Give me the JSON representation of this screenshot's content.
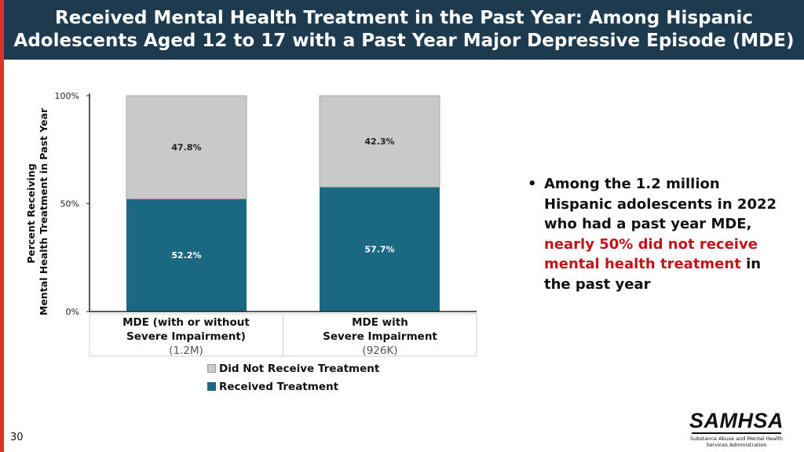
{
  "header": {
    "title_line1": "Received Mental Health Treatment in the Past Year: Among Hispanic",
    "title_line2": "Adolescents Aged 12 to 17 with a Past Year Major Depressive Episode (MDE)"
  },
  "colors": {
    "header_bg": "#1d3a4f",
    "accent_stripe": "#d9332b",
    "did_not_receive": "#c9c9c9",
    "received": "#1b6882",
    "highlight": "#c0151d"
  },
  "y_axis_title": {
    "line1": "Percent Receiving",
    "line2": "Mental Health Treatment in Past Year"
  },
  "categories": [
    {
      "line1": "MDE (with or without",
      "line2": "Severe Impairment)",
      "count": "(1.2M)"
    },
    {
      "line1": "MDE with",
      "line2": "Severe Impairment",
      "count": "(926K)"
    }
  ],
  "chart_data": {
    "type": "bar",
    "stacked": true,
    "categories": [
      "MDE (with or without Severe Impairment)",
      "MDE with Severe Impairment"
    ],
    "series": [
      {
        "name": "Received Treatment",
        "values": [
          52.2,
          57.7
        ],
        "labels": [
          "52.2%",
          "57.7%"
        ]
      },
      {
        "name": "Did Not Receive Treatment",
        "values": [
          47.8,
          42.3
        ],
        "labels": [
          "47.8%",
          "42.3%"
        ]
      }
    ],
    "ylim": [
      0,
      100
    ],
    "yticks": [
      0,
      50,
      100
    ],
    "ytick_labels": [
      "0%",
      "50%",
      "100%"
    ],
    "xlabel": "",
    "ylabel": "Percent Receiving Mental Health Treatment in Past Year",
    "legend_position": "bottom"
  },
  "legend": {
    "did_not_receive": "Did Not Receive Treatment",
    "received": "Received Treatment"
  },
  "bullet": {
    "part1": "Among the 1.2 million Hispanic adolescents in 2022 who had a past year MDE, ",
    "highlight": "nearly 50% did not receive mental health treatment",
    "part2": " in the past year"
  },
  "page_number": "30",
  "logo": {
    "wordmark": "SAMHSA",
    "subtitle_line1": "Substance Abuse and Mental Health",
    "subtitle_line2": "Services Administration"
  }
}
